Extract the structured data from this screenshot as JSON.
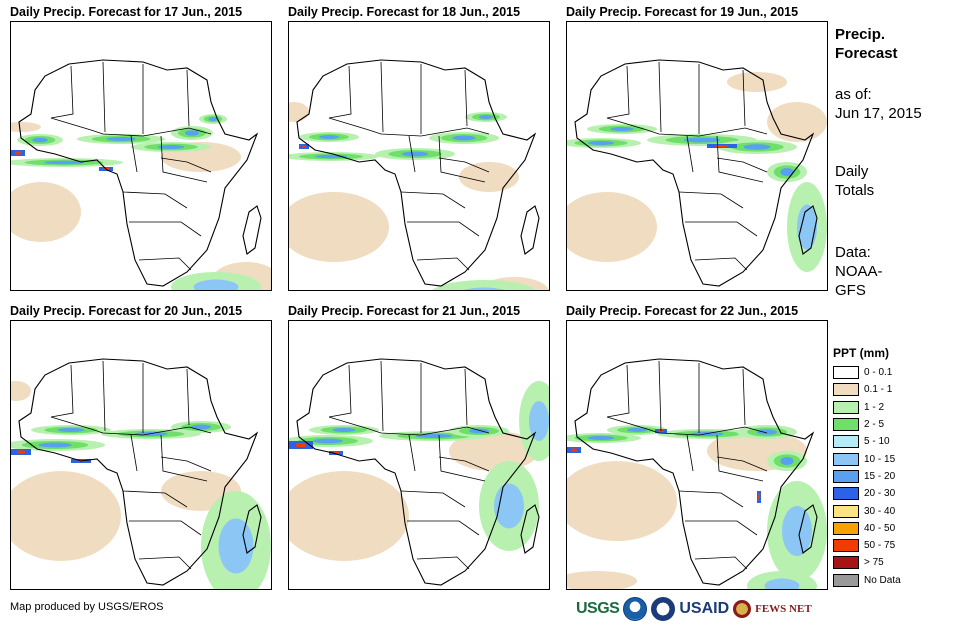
{
  "panels": [
    {
      "title": "Daily Precip. Forecast for 17 Jun., 2015"
    },
    {
      "title": "Daily Precip. Forecast for 18 Jun., 2015"
    },
    {
      "title": "Daily Precip. Forecast for 19 Jun., 2015"
    },
    {
      "title": "Daily Precip. Forecast for 20 Jun., 2015"
    },
    {
      "title": "Daily Precip. Forecast for 21 Jun., 2015"
    },
    {
      "title": "Daily Precip. Forecast for 22 Jun., 2015"
    }
  ],
  "side": {
    "title_line1": "Precip.",
    "title_line2": "Forecast",
    "asof_line1": "as of:",
    "asof_line2": "Jun 17, 2015",
    "totals_line1": "Daily",
    "totals_line2": "Totals",
    "data_line1": "Data:",
    "data_line2": "NOAA-",
    "data_line3": "GFS"
  },
  "legend": {
    "title": "PPT (mm)",
    "items": [
      {
        "label": "0 - 0.1",
        "color": "#ffffff"
      },
      {
        "label": "0.1 - 1",
        "color": "#f0dcc0"
      },
      {
        "label": "1 - 2",
        "color": "#b8f0b0"
      },
      {
        "label": "2 - 5",
        "color": "#6ee06a"
      },
      {
        "label": "5 - 10",
        "color": "#b4ecf8"
      },
      {
        "label": "10 - 15",
        "color": "#8cc6f4"
      },
      {
        "label": "15 - 20",
        "color": "#5aa0f0"
      },
      {
        "label": "20 - 30",
        "color": "#2c62e6"
      },
      {
        "label": "30 - 40",
        "color": "#fbe482"
      },
      {
        "label": "40 - 50",
        "color": "#f7a200"
      },
      {
        "label": "50 - 75",
        "color": "#f03c00"
      },
      {
        "label": "> 75",
        "color": "#a81414"
      },
      {
        "label": "No Data",
        "color": "#999999"
      }
    ]
  },
  "credit": "Map produced by USGS/EROS",
  "logos": {
    "usgs": "USGS",
    "usaid": "USAID",
    "fews": "FEWS NET"
  }
}
